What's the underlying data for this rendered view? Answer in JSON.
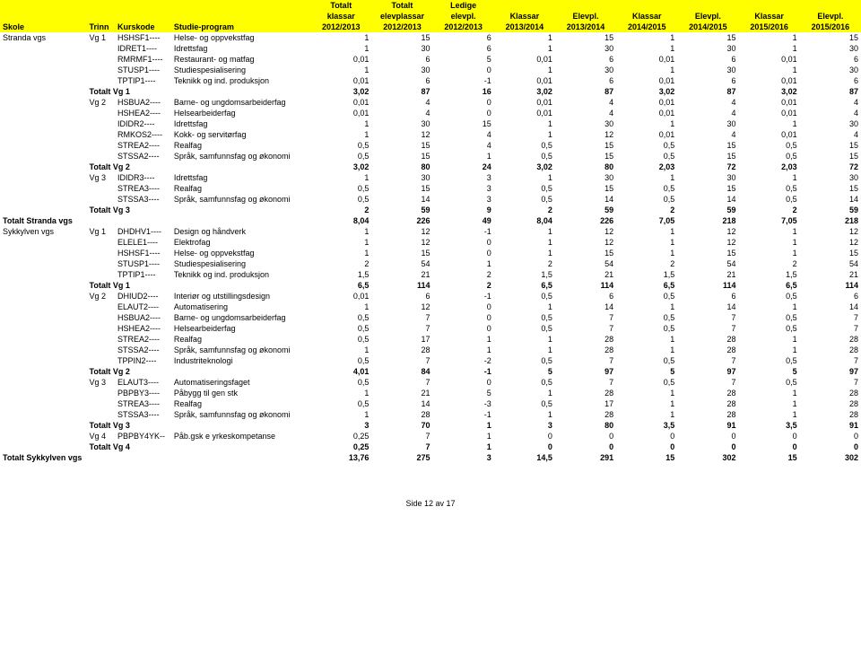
{
  "header": {
    "row1": [
      "",
      "",
      "",
      "",
      "Totalt",
      "Totalt",
      "Ledige",
      "",
      "",
      "",
      "",
      "",
      ""
    ],
    "row2": [
      "",
      "",
      "",
      "",
      "klassar",
      "elevplassar",
      "elevpl.",
      "Klassar",
      "Elevpl.",
      "Klassar",
      "Elevpl.",
      "Klassar",
      "Elevpl."
    ],
    "row3": [
      "Skole",
      "Trinn",
      "Kurskode",
      "Studie-program",
      "2012/2013",
      "2012/2013",
      "2012/2013",
      "2013/2014",
      "2013/2014",
      "2014/2015",
      "2014/2015",
      "2015/2016",
      "2015/2016"
    ]
  },
  "footer": "Side 12 av 17",
  "rows": [
    {
      "b": false,
      "c": [
        "Stranda vgs",
        "Vg 1",
        "HSHSF1----",
        "Helse- og oppvekstfag",
        "1",
        "15",
        "6",
        "1",
        "15",
        "1",
        "15",
        "1",
        "15"
      ]
    },
    {
      "b": false,
      "c": [
        "",
        "",
        "IDRET1----",
        "Idrettsfag",
        "1",
        "30",
        "6",
        "1",
        "30",
        "1",
        "30",
        "1",
        "30"
      ]
    },
    {
      "b": false,
      "c": [
        "",
        "",
        "RMRMF1----",
        "Restaurant- og matfag",
        "0,01",
        "6",
        "5",
        "0,01",
        "6",
        "0,01",
        "6",
        "0,01",
        "6"
      ]
    },
    {
      "b": false,
      "c": [
        "",
        "",
        "STUSP1----",
        "Studiespesialisering",
        "1",
        "30",
        "0",
        "1",
        "30",
        "1",
        "30",
        "1",
        "30"
      ]
    },
    {
      "b": false,
      "c": [
        "",
        "",
        "TPTIP1----",
        "Teknikk og ind. produksjon",
        "0,01",
        "6",
        "-1",
        "0,01",
        "6",
        "0,01",
        "6",
        "0,01",
        "6"
      ]
    },
    {
      "b": true,
      "c": [
        "",
        "Totalt Vg 1",
        "",
        "",
        "3,02",
        "87",
        "16",
        "3,02",
        "87",
        "3,02",
        "87",
        "3,02",
        "87"
      ]
    },
    {
      "b": false,
      "c": [
        "",
        "Vg 2",
        "HSBUA2----",
        "Barne- og ungdomsarbeiderfag",
        "0,01",
        "4",
        "0",
        "0,01",
        "4",
        "0,01",
        "4",
        "0,01",
        "4"
      ]
    },
    {
      "b": false,
      "c": [
        "",
        "",
        "HSHEA2----",
        "Helsearbeiderfag",
        "0,01",
        "4",
        "0",
        "0,01",
        "4",
        "0,01",
        "4",
        "0,01",
        "4"
      ]
    },
    {
      "b": false,
      "c": [
        "",
        "",
        "IDIDR2----",
        "Idrettsfag",
        "1",
        "30",
        "15",
        "1",
        "30",
        "1",
        "30",
        "1",
        "30"
      ]
    },
    {
      "b": false,
      "c": [
        "",
        "",
        "RMKOS2----",
        "Kokk- og servitørfag",
        "1",
        "12",
        "4",
        "1",
        "12",
        "0,01",
        "4",
        "0,01",
        "4"
      ]
    },
    {
      "b": false,
      "c": [
        "",
        "",
        "STREA2----",
        "Realfag",
        "0,5",
        "15",
        "4",
        "0,5",
        "15",
        "0,5",
        "15",
        "0,5",
        "15"
      ]
    },
    {
      "b": false,
      "c": [
        "",
        "",
        "STSSA2----",
        "Språk, samfunnsfag og økonomi",
        "0,5",
        "15",
        "1",
        "0,5",
        "15",
        "0,5",
        "15",
        "0,5",
        "15"
      ]
    },
    {
      "b": true,
      "c": [
        "",
        "Totalt Vg 2",
        "",
        "",
        "3,02",
        "80",
        "24",
        "3,02",
        "80",
        "2,03",
        "72",
        "2,03",
        "72"
      ]
    },
    {
      "b": false,
      "c": [
        "",
        "Vg 3",
        "IDIDR3----",
        "Idrettsfag",
        "1",
        "30",
        "3",
        "1",
        "30",
        "1",
        "30",
        "1",
        "30"
      ]
    },
    {
      "b": false,
      "c": [
        "",
        "",
        "STREA3----",
        "Realfag",
        "0,5",
        "15",
        "3",
        "0,5",
        "15",
        "0,5",
        "15",
        "0,5",
        "15"
      ]
    },
    {
      "b": false,
      "c": [
        "",
        "",
        "STSSA3----",
        "Språk, samfunnsfag og økonomi",
        "0,5",
        "14",
        "3",
        "0,5",
        "14",
        "0,5",
        "14",
        "0,5",
        "14"
      ]
    },
    {
      "b": true,
      "c": [
        "",
        "Totalt Vg 3",
        "",
        "",
        "2",
        "59",
        "9",
        "2",
        "59",
        "2",
        "59",
        "2",
        "59"
      ]
    },
    {
      "b": true,
      "c": [
        "Totalt Stranda vgs",
        "",
        "",
        "",
        "8,04",
        "226",
        "49",
        "8,04",
        "226",
        "7,05",
        "218",
        "7,05",
        "218"
      ]
    },
    {
      "b": false,
      "c": [
        "Sykkylven vgs",
        "Vg 1",
        "DHDHV1----",
        "Design og håndverk",
        "1",
        "12",
        "-1",
        "1",
        "12",
        "1",
        "12",
        "1",
        "12"
      ]
    },
    {
      "b": false,
      "c": [
        "",
        "",
        "ELELE1----",
        "Elektrofag",
        "1",
        "12",
        "0",
        "1",
        "12",
        "1",
        "12",
        "1",
        "12"
      ]
    },
    {
      "b": false,
      "c": [
        "",
        "",
        "HSHSF1----",
        "Helse- og oppvekstfag",
        "1",
        "15",
        "0",
        "1",
        "15",
        "1",
        "15",
        "1",
        "15"
      ]
    },
    {
      "b": false,
      "c": [
        "",
        "",
        "STUSP1----",
        "Studiespesialisering",
        "2",
        "54",
        "1",
        "2",
        "54",
        "2",
        "54",
        "2",
        "54"
      ]
    },
    {
      "b": false,
      "c": [
        "",
        "",
        "TPTIP1----",
        "Teknikk og ind. produksjon",
        "1,5",
        "21",
        "2",
        "1,5",
        "21",
        "1,5",
        "21",
        "1,5",
        "21"
      ]
    },
    {
      "b": true,
      "c": [
        "",
        "Totalt Vg 1",
        "",
        "",
        "6,5",
        "114",
        "2",
        "6,5",
        "114",
        "6,5",
        "114",
        "6,5",
        "114"
      ]
    },
    {
      "b": false,
      "c": [
        "",
        "Vg 2",
        "DHIUD2----",
        "Interiør og utstillingsdesign",
        "0,01",
        "6",
        "-1",
        "0,5",
        "6",
        "0,5",
        "6",
        "0,5",
        "6"
      ]
    },
    {
      "b": false,
      "c": [
        "",
        "",
        "ELAUT2----",
        "Automatisering",
        "1",
        "12",
        "0",
        "1",
        "14",
        "1",
        "14",
        "1",
        "14"
      ]
    },
    {
      "b": false,
      "c": [
        "",
        "",
        "HSBUA2----",
        "Barne- og ungdomsarbeiderfag",
        "0,5",
        "7",
        "0",
        "0,5",
        "7",
        "0,5",
        "7",
        "0,5",
        "7"
      ]
    },
    {
      "b": false,
      "c": [
        "",
        "",
        "HSHEA2----",
        "Helsearbeiderfag",
        "0,5",
        "7",
        "0",
        "0,5",
        "7",
        "0,5",
        "7",
        "0,5",
        "7"
      ]
    },
    {
      "b": false,
      "c": [
        "",
        "",
        "STREA2----",
        "Realfag",
        "0,5",
        "17",
        "1",
        "1",
        "28",
        "1",
        "28",
        "1",
        "28"
      ]
    },
    {
      "b": false,
      "c": [
        "",
        "",
        "STSSA2----",
        "Språk, samfunnsfag og økonomi",
        "1",
        "28",
        "1",
        "1",
        "28",
        "1",
        "28",
        "1",
        "28"
      ]
    },
    {
      "b": false,
      "c": [
        "",
        "",
        "TPPIN2----",
        "Industriteknologi",
        "0,5",
        "7",
        "-2",
        "0,5",
        "7",
        "0,5",
        "7",
        "0,5",
        "7"
      ]
    },
    {
      "b": true,
      "c": [
        "",
        "Totalt Vg 2",
        "",
        "",
        "4,01",
        "84",
        "-1",
        "5",
        "97",
        "5",
        "97",
        "5",
        "97"
      ]
    },
    {
      "b": false,
      "c": [
        "",
        "Vg 3",
        "ELAUT3----",
        "Automatiseringsfaget",
        "0,5",
        "7",
        "0",
        "0,5",
        "7",
        "0,5",
        "7",
        "0,5",
        "7"
      ]
    },
    {
      "b": false,
      "c": [
        "",
        "",
        "PBPBY3----",
        "Påbygg til gen stk",
        "1",
        "21",
        "5",
        "1",
        "28",
        "1",
        "28",
        "1",
        "28"
      ]
    },
    {
      "b": false,
      "c": [
        "",
        "",
        "STREA3----",
        "Realfag",
        "0,5",
        "14",
        "-3",
        "0,5",
        "17",
        "1",
        "28",
        "1",
        "28"
      ]
    },
    {
      "b": false,
      "c": [
        "",
        "",
        "STSSA3----",
        "Språk, samfunnsfag og økonomi",
        "1",
        "28",
        "-1",
        "1",
        "28",
        "1",
        "28",
        "1",
        "28"
      ]
    },
    {
      "b": true,
      "c": [
        "",
        "Totalt Vg 3",
        "",
        "",
        "3",
        "70",
        "1",
        "3",
        "80",
        "3,5",
        "91",
        "3,5",
        "91"
      ]
    },
    {
      "b": false,
      "c": [
        "",
        "Vg 4",
        "PBPBY4YK--",
        "Påb.gsk e yrkeskompetanse",
        "0,25",
        "7",
        "1",
        "0",
        "0",
        "0",
        "0",
        "0",
        "0"
      ]
    },
    {
      "b": true,
      "c": [
        "",
        "Totalt Vg 4",
        "",
        "",
        "0,25",
        "7",
        "1",
        "0",
        "0",
        "0",
        "0",
        "0",
        "0"
      ]
    },
    {
      "b": true,
      "c": [
        "Totalt Sykkylven vgs",
        "",
        "",
        "",
        "13,76",
        "275",
        "3",
        "14,5",
        "291",
        "15",
        "302",
        "15",
        "302"
      ]
    }
  ]
}
